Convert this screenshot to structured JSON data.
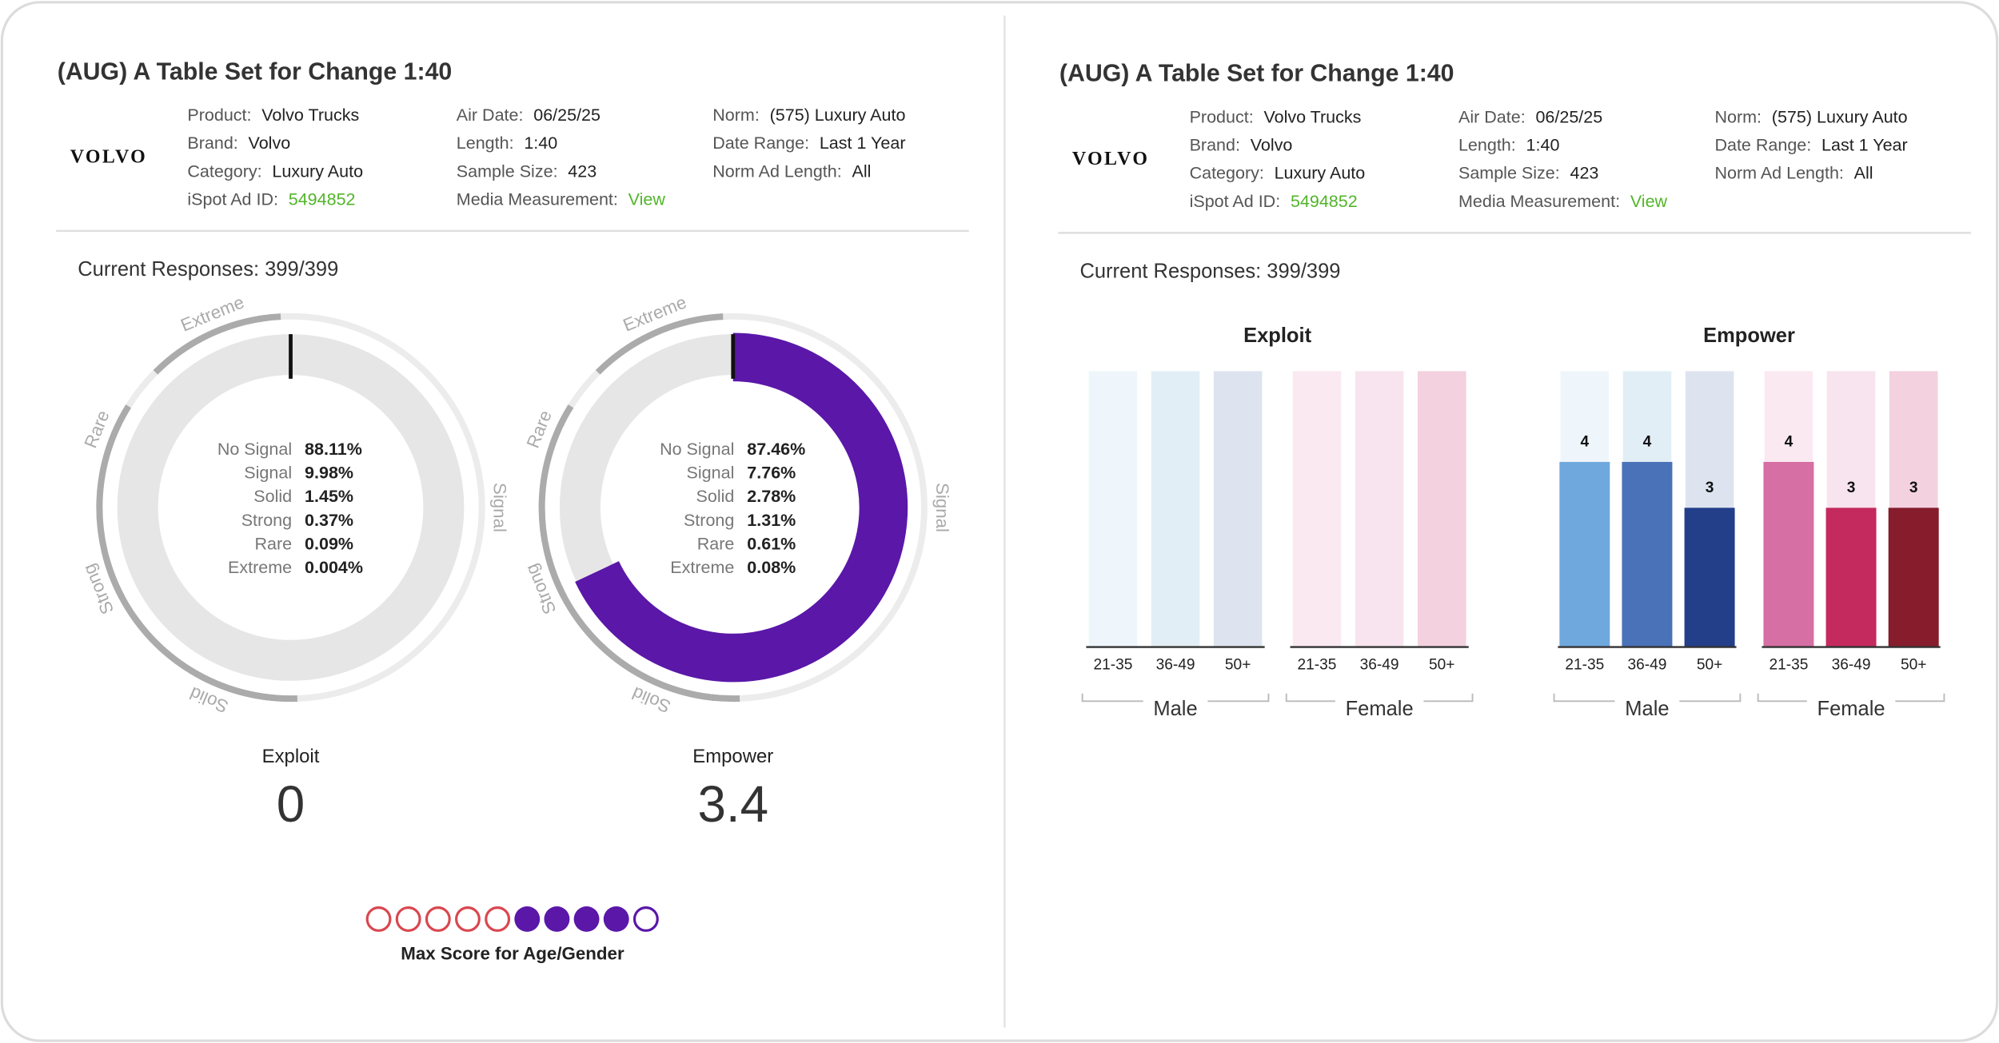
{
  "panels": [
    {
      "header": {
        "title": "(AUG) A Table Set for Change 1:40",
        "logo": "VOLVO",
        "columns": [
          [
            {
              "label": "Product:",
              "value": "Volvo Trucks"
            },
            {
              "label": "Brand:",
              "value": "Volvo"
            },
            {
              "label": "Category:",
              "value": "Luxury Auto"
            },
            {
              "label": "iSpot Ad ID:",
              "value": "5494852",
              "link": true
            }
          ],
          [
            {
              "label": "Air Date:",
              "value": "06/25/25"
            },
            {
              "label": "Length:",
              "value": "1:40"
            },
            {
              "label": "Sample Size:",
              "value": "423"
            },
            {
              "label": "Media Measurement:",
              "value": "View",
              "link": true
            }
          ],
          [
            {
              "label": "Norm:",
              "value": "(575) Luxury Auto"
            },
            {
              "label": "Date Range:",
              "value": "Last 1 Year"
            },
            {
              "label": "Norm Ad Length:",
              "value": "All"
            }
          ]
        ]
      },
      "responses": "Current Responses: 399/399",
      "ring_labels": [
        "Extreme",
        "Rare",
        "Strong",
        "Solid",
        "Signal"
      ],
      "gauges": [
        {
          "name": "Exploit",
          "score": 0,
          "range": [
            0,
            5
          ],
          "color": "#5a17a8",
          "stats": [
            {
              "label": "No Signal",
              "value": "88.11%"
            },
            {
              "label": "Signal",
              "value": "9.98%"
            },
            {
              "label": "Solid",
              "value": "1.45%"
            },
            {
              "label": "Strong",
              "value": "0.37%"
            },
            {
              "label": "Rare",
              "value": "0.09%"
            },
            {
              "label": "Extreme",
              "value": "0.004%"
            }
          ]
        },
        {
          "name": "Empower",
          "score": 3.4,
          "range": [
            0,
            5
          ],
          "color": "#5a17a8",
          "stats": [
            {
              "label": "No Signal",
              "value": "87.46%"
            },
            {
              "label": "Signal",
              "value": "7.76%"
            },
            {
              "label": "Solid",
              "value": "2.78%"
            },
            {
              "label": "Strong",
              "value": "1.31%"
            },
            {
              "label": "Rare",
              "value": "0.61%"
            },
            {
              "label": "Extreme",
              "value": "0.08%"
            }
          ]
        }
      ],
      "max_score_label": "Max Score for Age/Gender"
    },
    {
      "header": {
        "title": "(AUG) A Table Set for Change 1:40",
        "logo": "VOLVO",
        "columns": [
          [
            {
              "label": "Product:",
              "value": "Volvo Trucks"
            },
            {
              "label": "Brand:",
              "value": "Volvo"
            },
            {
              "label": "Category:",
              "value": "Luxury Auto"
            },
            {
              "label": "iSpot Ad ID:",
              "value": "5494852",
              "link": true
            }
          ],
          [
            {
              "label": "Air Date:",
              "value": "06/25/25"
            },
            {
              "label": "Length:",
              "value": "1:40"
            },
            {
              "label": "Sample Size:",
              "value": "423"
            },
            {
              "label": "Media Measurement:",
              "value": "View",
              "link": true
            }
          ],
          [
            {
              "label": "Norm:",
              "value": "(575) Luxury Auto"
            },
            {
              "label": "Date Range:",
              "value": "Last 1 Year"
            },
            {
              "label": "Norm Ad Length:",
              "value": "All"
            }
          ]
        ]
      },
      "responses": "Current Responses: 399/399",
      "charts": [
        {
          "type": "bar",
          "title": "Exploit",
          "ylim": [
            0,
            6
          ],
          "groups": [
            {
              "name": "Male",
              "categories": [
                "21-35",
                "36-49",
                "50+"
              ],
              "values": [
                0,
                0,
                0
              ],
              "colors": [
                "#6fa8dc",
                "#4a72b8",
                "#233f8a"
              ],
              "tracks": [
                "#eef6fc",
                "#e2eef6",
                "#dde4ef"
              ]
            },
            {
              "name": "Female",
              "categories": [
                "21-35",
                "36-49",
                "50+"
              ],
              "values": [
                0,
                0,
                0
              ],
              "colors": [
                "#d66fa3",
                "#c42a5d",
                "#861c2c"
              ],
              "tracks": [
                "#fbe9f1",
                "#f8e4ee",
                "#f3d1df"
              ]
            }
          ]
        },
        {
          "type": "bar",
          "title": "Empower",
          "ylim": [
            0,
            6
          ],
          "value_labels": true,
          "groups": [
            {
              "name": "Male",
              "categories": [
                "21-35",
                "36-49",
                "50+"
              ],
              "values": [
                4,
                4,
                3
              ],
              "colors": [
                "#6fa8dc",
                "#4a72b8",
                "#233f8a"
              ],
              "tracks": [
                "#eef6fc",
                "#e2eef6",
                "#dde4ef"
              ]
            },
            {
              "name": "Female",
              "categories": [
                "21-35",
                "36-49",
                "50+"
              ],
              "values": [
                4,
                3,
                3
              ],
              "colors": [
                "#d66fa3",
                "#c42a5d",
                "#861c2c"
              ],
              "tracks": [
                "#fbe9f1",
                "#f8e4ee",
                "#f3d1df"
              ]
            }
          ]
        }
      ]
    }
  ]
}
